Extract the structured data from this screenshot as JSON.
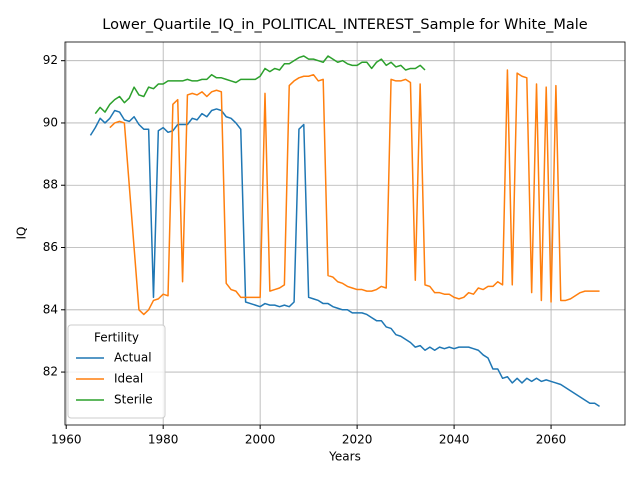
{
  "chart_data": {
    "type": "line",
    "title": "Lower_Quartile_IQ_in_POLITICAL_INTEREST_Sample for White_Male",
    "x_label": "Years",
    "y_label": "IQ",
    "legend_title": "Fertility",
    "legend_position": "lower left",
    "grid": true,
    "xlim": [
      1959.75,
      2075.25
    ],
    "ylim": [
      80.3,
      92.6
    ],
    "xticks": [
      1960,
      1980,
      2000,
      2020,
      2040,
      2060
    ],
    "yticks": [
      82,
      84,
      86,
      88,
      90,
      92
    ],
    "x": [
      1965,
      1966,
      1967,
      1968,
      1969,
      1970,
      1971,
      1972,
      1973,
      1974,
      1975,
      1976,
      1977,
      1978,
      1979,
      1980,
      1981,
      1982,
      1983,
      1984,
      1985,
      1986,
      1987,
      1988,
      1989,
      1990,
      1991,
      1992,
      1993,
      1994,
      1995,
      1996,
      1997,
      1998,
      1999,
      2000,
      2001,
      2002,
      2003,
      2004,
      2005,
      2006,
      2007,
      2008,
      2009,
      2010,
      2011,
      2012,
      2013,
      2014,
      2015,
      2016,
      2017,
      2018,
      2019,
      2020,
      2021,
      2022,
      2023,
      2024,
      2025,
      2026,
      2027,
      2028,
      2029,
      2030,
      2031,
      2032,
      2033,
      2034,
      2035,
      2036,
      2037,
      2038,
      2039,
      2040,
      2041,
      2042,
      2043,
      2044,
      2045,
      2046,
      2047,
      2048,
      2049,
      2050,
      2051,
      2052,
      2053,
      2054,
      2055,
      2056,
      2057,
      2058,
      2059,
      2060,
      2061,
      2062,
      2063,
      2064,
      2065,
      2066,
      2067,
      2068,
      2069,
      2070
    ],
    "series": [
      {
        "name": "Actual",
        "color": "#1f77b4",
        "values": [
          89.6,
          89.85,
          90.15,
          90.0,
          90.15,
          90.4,
          90.35,
          90.1,
          90.05,
          90.2,
          89.95,
          89.8,
          89.8,
          84.4,
          89.75,
          89.85,
          89.7,
          89.75,
          89.95,
          89.95,
          89.95,
          90.15,
          90.1,
          90.3,
          90.2,
          90.4,
          90.45,
          90.4,
          90.2,
          90.15,
          90.0,
          89.8,
          84.25,
          84.2,
          84.15,
          84.1,
          84.2,
          84.15,
          84.15,
          84.1,
          84.15,
          84.1,
          84.25,
          89.8,
          89.95,
          84.4,
          84.35,
          84.3,
          84.2,
          84.2,
          84.1,
          84.05,
          84.0,
          84.0,
          83.9,
          83.9,
          83.9,
          83.85,
          83.75,
          83.65,
          83.65,
          83.45,
          83.4,
          83.2,
          83.15,
          83.05,
          82.95,
          82.8,
          82.85,
          82.7,
          82.8,
          82.7,
          82.8,
          82.75,
          82.8,
          82.75,
          82.8,
          82.8,
          82.8,
          82.75,
          82.7,
          82.55,
          82.45,
          82.1,
          82.1,
          81.8,
          81.85,
          81.65,
          81.8,
          81.65,
          81.8,
          81.7,
          81.8,
          81.7,
          81.75,
          81.7,
          81.65,
          81.6,
          81.5,
          81.4,
          81.3,
          81.2,
          81.1,
          81.0,
          81.0,
          80.9
        ]
      },
      {
        "name": "Ideal",
        "color": "#ff7f0e",
        "values": [
          null,
          null,
          null,
          null,
          89.85,
          90.0,
          90.05,
          90.0,
          88.0,
          86.0,
          84.0,
          83.85,
          84.0,
          84.3,
          84.35,
          84.5,
          84.45,
          90.6,
          90.75,
          84.9,
          90.9,
          90.95,
          90.9,
          91.0,
          90.85,
          91.0,
          91.05,
          91.0,
          84.85,
          84.65,
          84.6,
          84.4,
          84.4,
          84.4,
          84.4,
          84.4,
          90.95,
          84.6,
          84.65,
          84.7,
          84.8,
          91.2,
          91.35,
          91.45,
          91.5,
          91.5,
          91.55,
          91.35,
          91.4,
          85.1,
          85.05,
          84.9,
          84.85,
          84.75,
          84.7,
          84.65,
          84.65,
          84.6,
          84.6,
          84.65,
          84.75,
          84.7,
          91.4,
          91.35,
          91.35,
          91.4,
          91.3,
          84.95,
          91.25,
          84.8,
          84.75,
          84.55,
          84.55,
          84.5,
          84.5,
          84.4,
          84.35,
          84.4,
          84.55,
          84.5,
          84.7,
          84.65,
          84.75,
          84.75,
          84.9,
          84.8,
          91.7,
          84.8,
          91.6,
          91.5,
          91.45,
          84.55,
          91.25,
          84.3,
          91.15,
          84.25,
          91.2,
          84.3,
          84.3,
          84.35,
          84.45,
          84.55,
          84.6,
          84.6,
          84.6,
          84.6
        ]
      },
      {
        "name": "Sterile",
        "color": "#2ca02c",
        "values": [
          null,
          90.3,
          90.5,
          90.35,
          90.6,
          90.75,
          90.85,
          90.65,
          90.8,
          91.15,
          90.9,
          90.85,
          91.15,
          91.1,
          91.25,
          91.25,
          91.35,
          91.35,
          91.35,
          91.35,
          91.4,
          91.35,
          91.35,
          91.4,
          91.4,
          91.55,
          91.45,
          91.45,
          91.4,
          91.35,
          91.3,
          91.4,
          91.4,
          91.4,
          91.4,
          91.5,
          91.75,
          91.65,
          91.75,
          91.7,
          91.9,
          91.9,
          92.0,
          92.1,
          92.15,
          92.05,
          92.05,
          92.0,
          91.95,
          92.15,
          92.05,
          91.95,
          92.0,
          91.9,
          91.85,
          91.85,
          91.95,
          91.95,
          91.75,
          91.95,
          92.05,
          91.85,
          91.95,
          91.8,
          91.85,
          91.7,
          91.75,
          91.75,
          91.85,
          91.7,
          null,
          null,
          null,
          null,
          null,
          null,
          null,
          null,
          null,
          null,
          null,
          null,
          null,
          null,
          null,
          null,
          null,
          null,
          null,
          null,
          null,
          null,
          null,
          null,
          null,
          null,
          null,
          null,
          null,
          null,
          null,
          null,
          null,
          null,
          null,
          null
        ]
      }
    ]
  }
}
